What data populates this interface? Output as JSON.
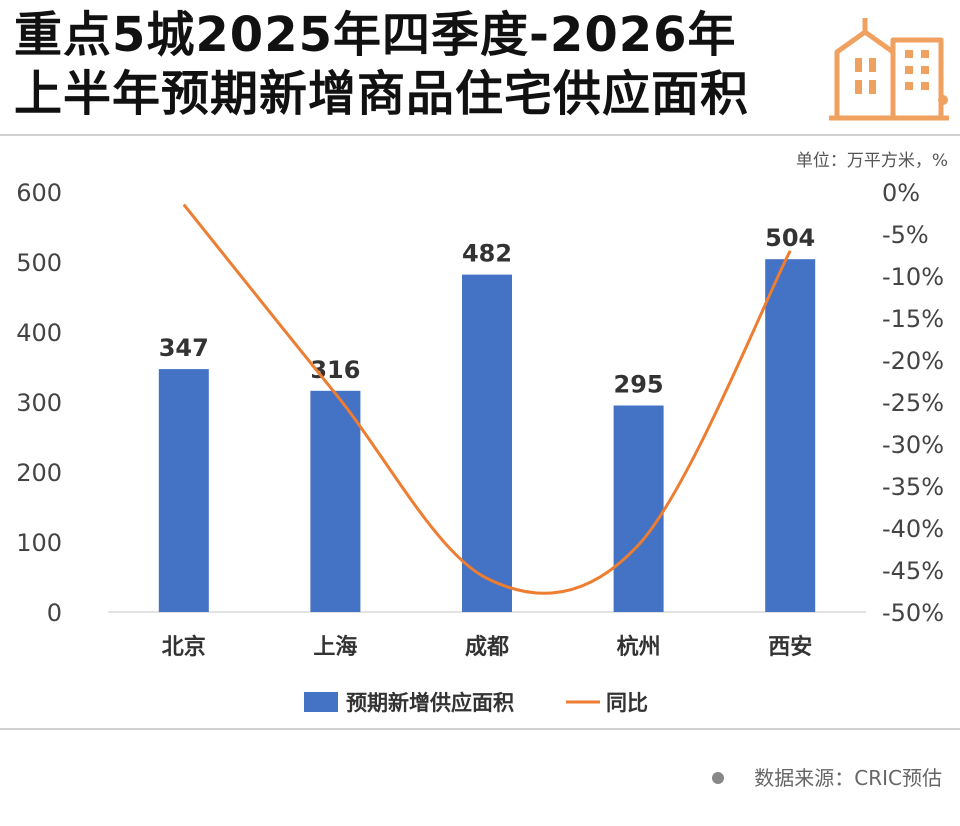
{
  "title": {
    "line1": "重点5城2025年四季度-2026年",
    "line2": "上半年预期新增商品住宅供应面积"
  },
  "unit_note": "单位：万平方米，%",
  "source": "数据来源：CRIC预估",
  "colors": {
    "bar": "#4472C4",
    "line": "#ED7D31",
    "logo": "#F0A15F"
  },
  "icons": {
    "logo": "building-icon",
    "legend_dot": "bullet-icon"
  },
  "chart_data": {
    "type": "bar",
    "combo": "bar + line on secondary axis",
    "categories": [
      "北京",
      "上海",
      "成都",
      "杭州",
      "西安"
    ],
    "series": [
      {
        "name": "预期新增供应面积",
        "type": "bar",
        "axis": "left",
        "values": [
          347,
          316,
          482,
          295,
          504
        ],
        "data_labels": [
          "347",
          "316",
          "482",
          "295",
          "504"
        ]
      },
      {
        "name": "同比",
        "type": "line",
        "axis": "right",
        "values": [
          -1.5,
          -24,
          -46,
          -42,
          -7
        ],
        "smooth": true
      }
    ],
    "y_left": {
      "min": 0,
      "max": 600,
      "ticks": [
        0,
        100,
        200,
        300,
        400,
        500,
        600
      ],
      "tick_labels": [
        "0",
        "100",
        "200",
        "300",
        "400",
        "500",
        "600"
      ]
    },
    "y_right": {
      "min": -50,
      "max": 0,
      "ticks": [
        0,
        -5,
        -10,
        -15,
        -20,
        -25,
        -30,
        -35,
        -40,
        -45,
        -50
      ],
      "tick_labels": [
        "0%",
        "-5%",
        "-10%",
        "-15%",
        "-20%",
        "-25%",
        "-30%",
        "-35%",
        "-40%",
        "-45%",
        "-50%"
      ]
    },
    "legend": {
      "position": "bottom",
      "entries": [
        "预期新增供应面积",
        "同比"
      ]
    },
    "grid": false
  }
}
